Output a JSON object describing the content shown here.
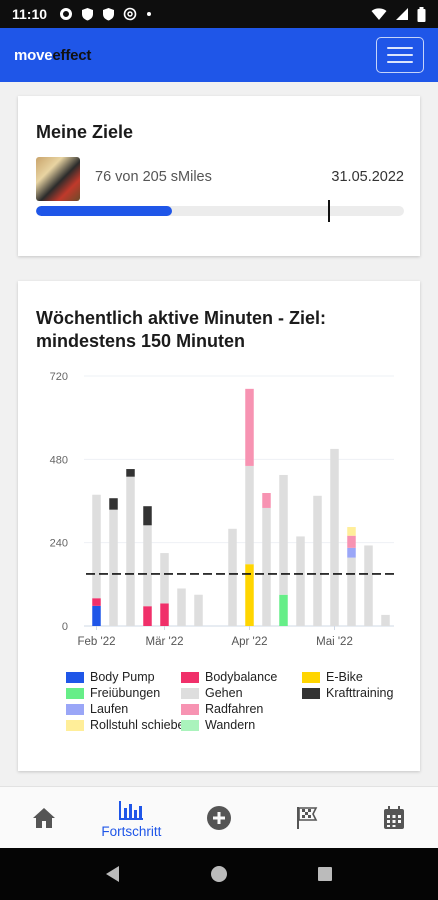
{
  "status_bar": {
    "time": "11:10",
    "icons": [
      "gear-icon",
      "shield-icon",
      "shield-icon",
      "at-icon",
      "dot-icon"
    ],
    "right_icons": [
      "wifi-icon",
      "signal-icon",
      "battery-icon"
    ]
  },
  "app": {
    "logo_move": "move",
    "logo_effect": "effect",
    "menu_icon": "hamburger-icon"
  },
  "goals": {
    "title": "Meine Ziele",
    "progress_text": "76 von 205 sMiles",
    "date": "31.05.2022",
    "progress_fraction": 0.37
  },
  "activity": {
    "title": "Wöchentlich aktive Minuten - Ziel: mindestens 150 Minuten"
  },
  "chart_data": {
    "type": "bar",
    "stacked": true,
    "yticks": [
      "720",
      "480",
      "240",
      "0"
    ],
    "ylim": [
      0,
      720
    ],
    "goal_line": 150,
    "xtick_labels": [
      {
        "label": "Feb '22",
        "week": 0
      },
      {
        "label": "Mär '22",
        "week": 4
      },
      {
        "label": "Apr '22",
        "week": 9
      },
      {
        "label": "Mai '22",
        "week": 14
      }
    ],
    "weeks": [
      {
        "Gehen": 298,
        "Bodybalance": 22,
        "Body Pump": 58
      },
      {
        "Gehen": 335,
        "Krafttraining": 33
      },
      {
        "Gehen": 430,
        "Krafttraining": 22
      },
      {
        "Gehen": 233,
        "Krafttraining": 55,
        "Bodybalance": 57
      },
      {
        "Gehen": 145,
        "Bodybalance": 65
      },
      {
        "Gehen": 108
      },
      {
        "Gehen": 90
      },
      {
        "Gehen": 0
      },
      {
        "Gehen": 280
      },
      {
        "Radfahren": 222,
        "Gehen": 283,
        "E-Bike": 178
      },
      {
        "Radfahren": 43,
        "Gehen": 340
      },
      {
        "Freiübungen": 90,
        "Gehen": 345
      },
      {
        "Gehen": 258
      },
      {
        "Gehen": 375
      },
      {
        "Gehen": 510
      },
      {
        "Rollstuhl schieben": 25,
        "Radfahren": 35,
        "Laufen": 28,
        "Gehen": 197
      },
      {
        "Gehen": 232
      },
      {
        "Gehen": 32
      }
    ],
    "legend": [
      {
        "name": "Body Pump",
        "color": "#1f56e8"
      },
      {
        "name": "Bodybalance",
        "color": "#f0306a"
      },
      {
        "name": "E-Bike",
        "color": "#ffd500"
      },
      {
        "name": "Freiübungen",
        "color": "#66ee88"
      },
      {
        "name": "Gehen",
        "color": "#dedede"
      },
      {
        "name": "Krafttraining",
        "color": "#333333"
      },
      {
        "name": "Laufen",
        "color": "#9aa6f7"
      },
      {
        "name": "Radfahren",
        "color": "#f793b2"
      },
      {
        "name": "Rollstuhl schieben",
        "color": "#ffee99"
      },
      {
        "name": "Wandern",
        "color": "#aaf3bc"
      }
    ]
  },
  "bottom_nav": {
    "home_icon": "home-icon",
    "progress_label": "Fortschritt",
    "add_icon": "add-circle-icon",
    "challenge_icon": "flag-icon",
    "calendar_icon": "calendar-icon"
  }
}
